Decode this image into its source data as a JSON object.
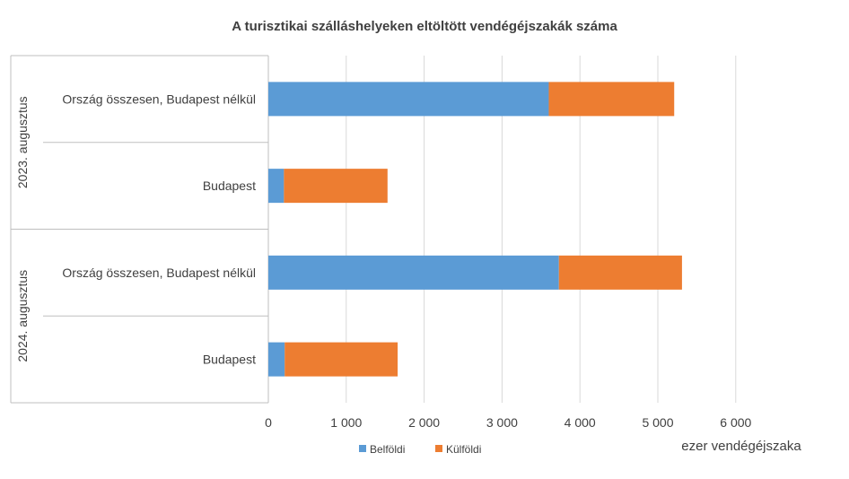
{
  "chart_data": {
    "type": "bar",
    "orientation": "horizontal",
    "stacked": true,
    "title": "A turisztikai szálláshelyeken eltöltött vendégéjszakák száma",
    "xlabel": "ezer vendégéjszaka",
    "ylabel": "",
    "xlim": [
      0,
      6000
    ],
    "xticks": [
      0,
      1000,
      2000,
      3000,
      4000,
      5000,
      6000
    ],
    "xtick_labels": [
      "0",
      "1 000",
      "2 000",
      "3 000",
      "4 000",
      "5 000",
      "6 000"
    ],
    "grid": true,
    "legend_position": "bottom",
    "groups": [
      {
        "label": "2023. augusztus",
        "categories": [
          "Ország összesen, Budapest nélkül",
          "Budapest"
        ]
      },
      {
        "label": "2024. augusztus",
        "categories": [
          "Ország összesen, Budapest nélkül",
          "Budapest"
        ]
      }
    ],
    "series": [
      {
        "name": "Belföldi",
        "color": "#5B9BD5",
        "values": [
          3600,
          200,
          3730,
          210
        ]
      },
      {
        "name": "Külföldi",
        "color": "#ED7D31",
        "values": [
          1610,
          1330,
          1580,
          1450
        ]
      }
    ]
  }
}
